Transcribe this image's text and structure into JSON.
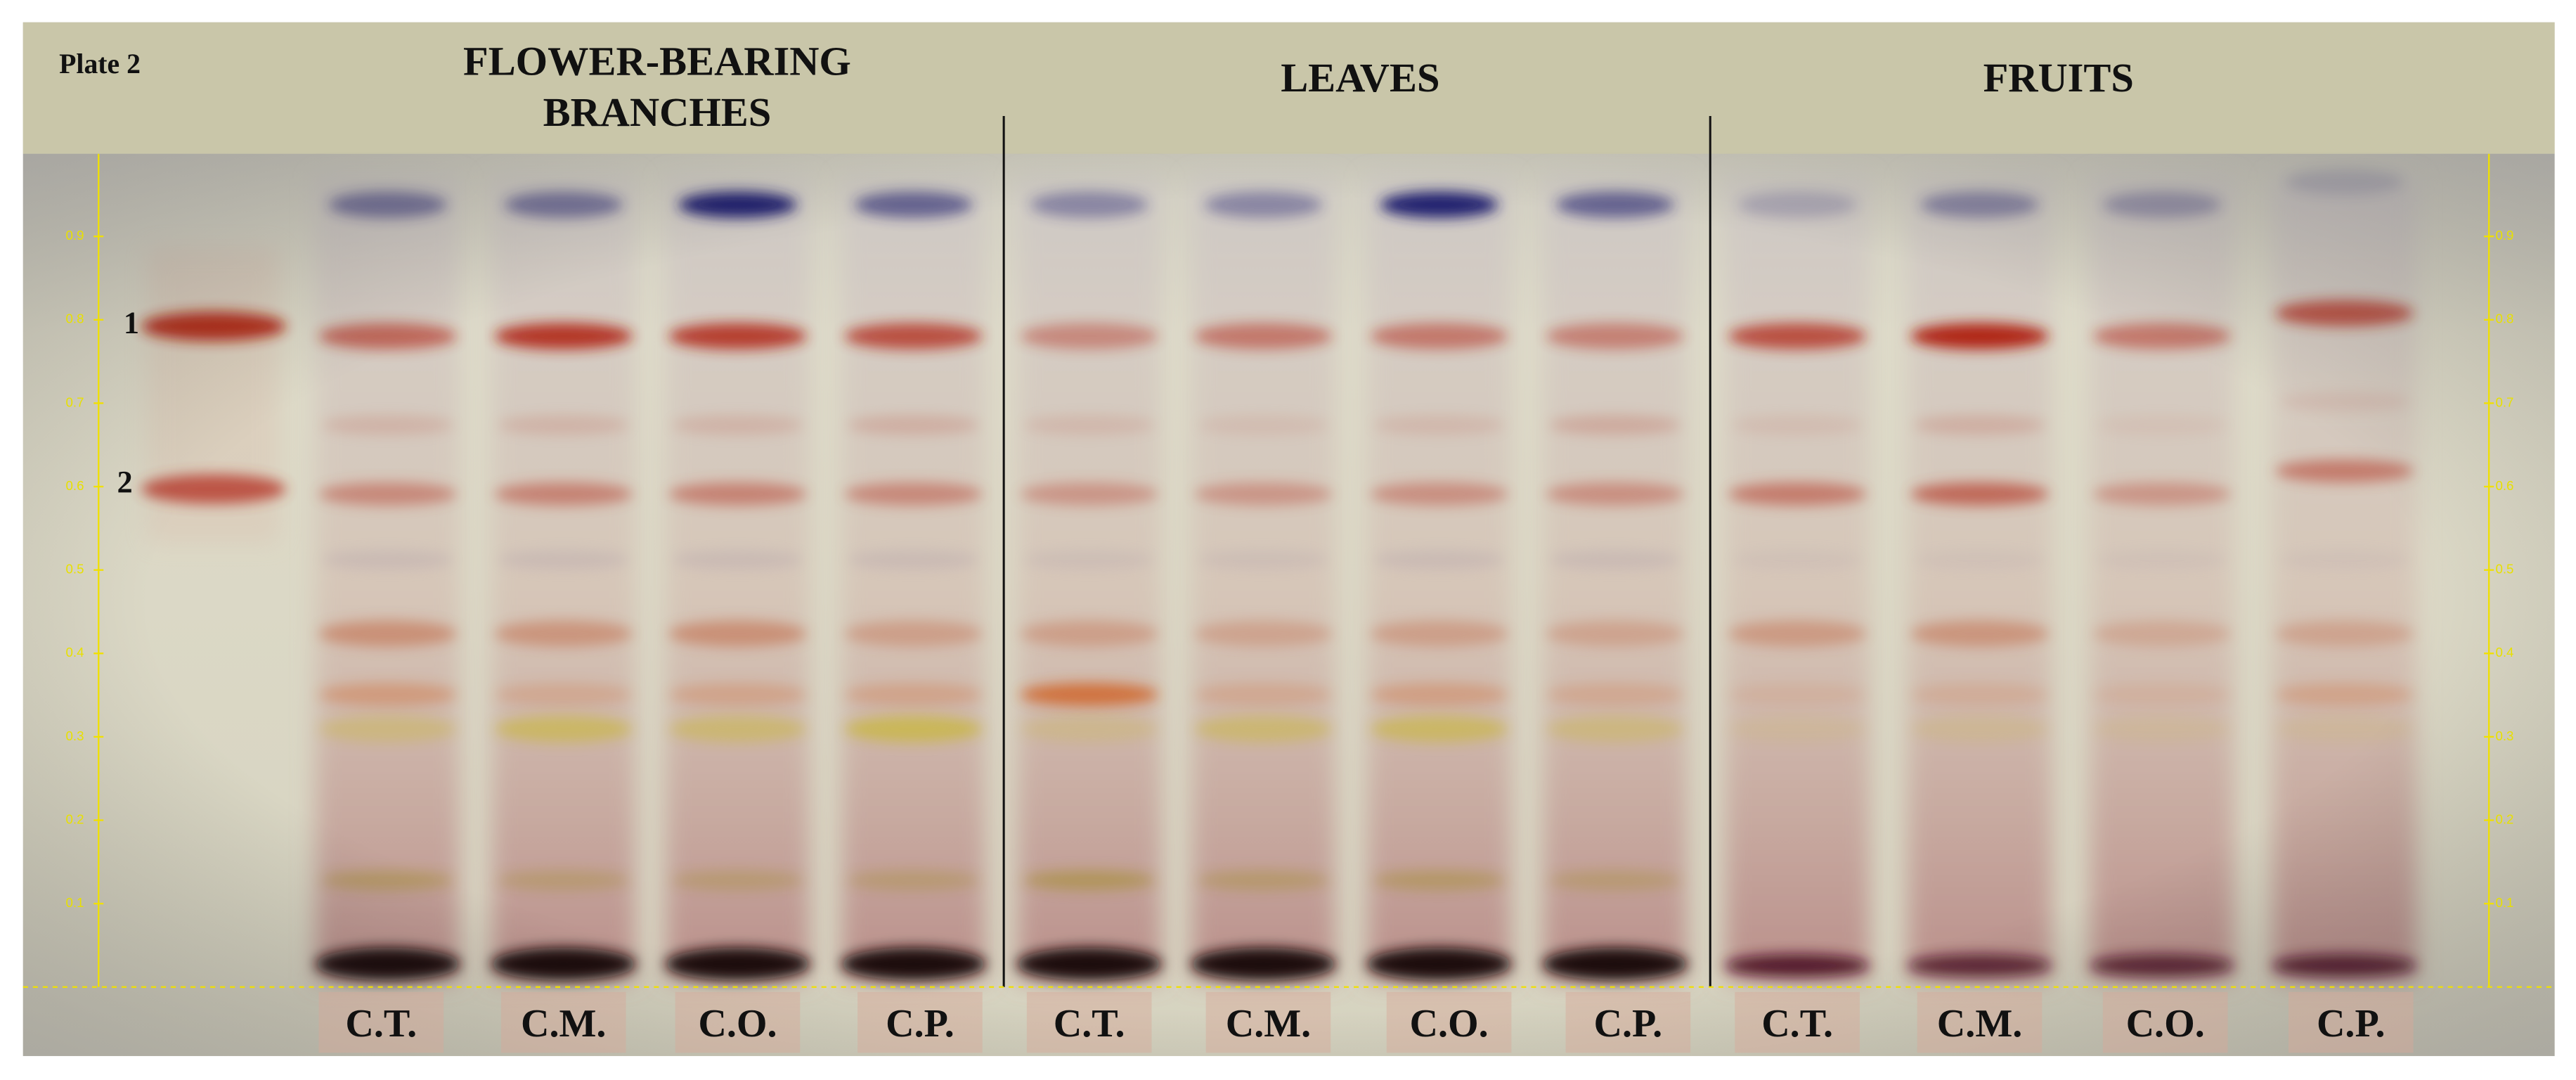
{
  "plate_label": "Plate 2",
  "groups": [
    {
      "title_lines": [
        "FLOWER-BEARING",
        "BRANCHES"
      ],
      "lanes": [
        "C.T.",
        "C.M.",
        "C.O.",
        "C.P."
      ]
    },
    {
      "title_lines": [
        "LEAVES"
      ],
      "lanes": [
        "C.T.",
        "C.M.",
        "C.O.",
        "C.P."
      ]
    },
    {
      "title_lines": [
        "FRUITS"
      ],
      "lanes": [
        "C.T.",
        "C.M.",
        "C.O.",
        "C.P."
      ]
    }
  ],
  "reference_labels": [
    "1",
    "2"
  ],
  "rf_scale": [
    0.1,
    0.2,
    0.3,
    0.4,
    0.5,
    0.6,
    0.7,
    0.8,
    0.9
  ]
}
